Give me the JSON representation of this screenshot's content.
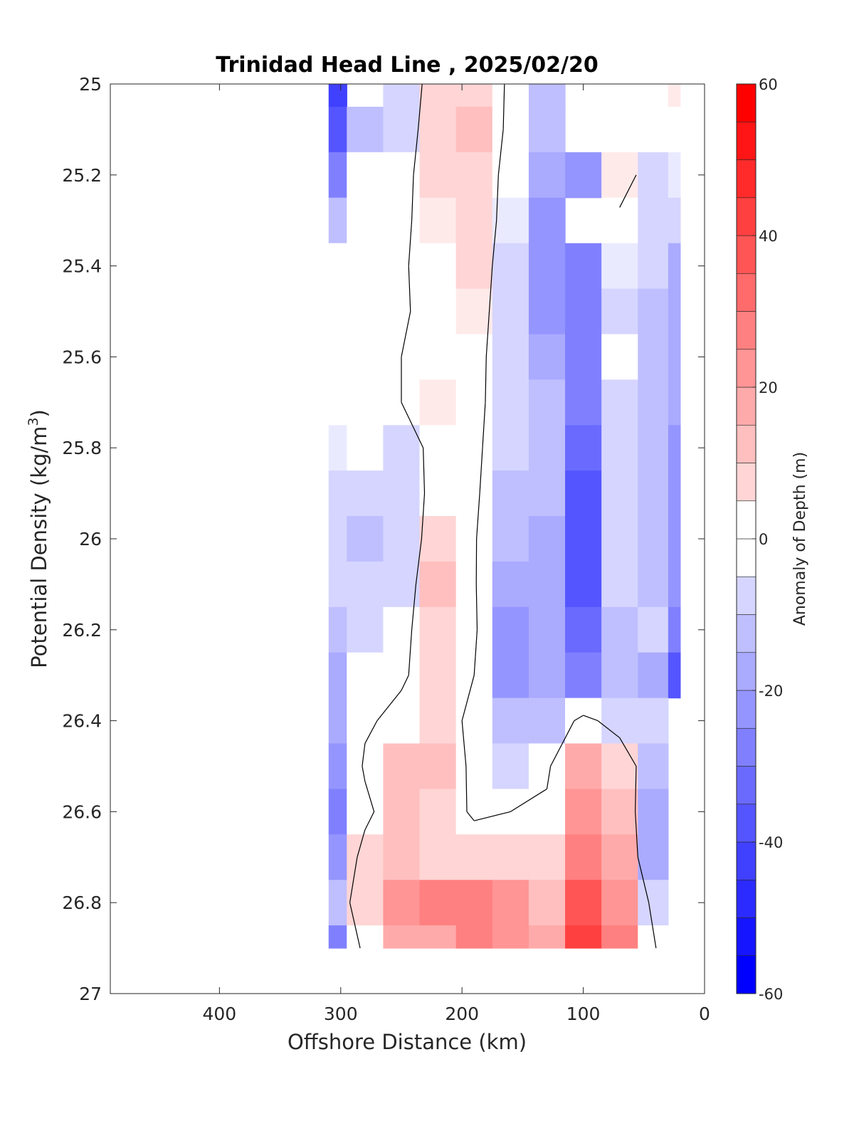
{
  "chart_data": {
    "type": "heatmap",
    "title": "Trinidad Head Line , 2025/02/20",
    "xlabel": "Offshore Distance (km)",
    "ylabel_main": "Potential Density (kg/m",
    "ylabel_sup": "3",
    "ylabel_end": ")",
    "colorbar_label": "Anomaly of Depth (m)",
    "xlim": [
      490,
      0
    ],
    "x_reversed": true,
    "ylim": [
      25,
      27
    ],
    "y_reversed": true,
    "xticks": [
      400,
      300,
      200,
      100,
      0
    ],
    "yticks": [
      25,
      25.2,
      25.4,
      25.6,
      25.8,
      26,
      26.2,
      26.4,
      26.6,
      26.8,
      27
    ],
    "ytick_labels": [
      "25",
      "25.2",
      "25.4",
      "25.6",
      "25.8",
      "26",
      "26.2",
      "26.4",
      "26.6",
      "26.8",
      "27"
    ],
    "colorbar_ticks": [
      60,
      40,
      20,
      0,
      -20,
      -40,
      -60
    ],
    "colorbar_range": [
      -60,
      60
    ],
    "colorbar_step": 5,
    "colors": {
      "negative": "#0000ff",
      "positive": "#ff0000",
      "neutral": "#ffffff",
      "contour": "#000000"
    },
    "x": [
      310,
      280,
      250,
      220,
      190,
      160,
      130,
      100,
      70,
      40,
      20
    ],
    "y": [
      25.0,
      25.1,
      25.2,
      25.3,
      25.4,
      25.5,
      25.6,
      25.7,
      25.8,
      25.9,
      26.0,
      26.1,
      26.2,
      26.3,
      26.4,
      26.5,
      26.6,
      26.7,
      26.8,
      26.9
    ],
    "z": [
      [
        -45,
        null,
        -8,
        6,
        10,
        -2,
        -12,
        null,
        null,
        null,
        5
      ],
      [
        -40,
        -12,
        -6,
        7,
        12,
        -3,
        -15,
        null,
        null,
        -2,
        0
      ],
      [
        -30,
        0,
        -3,
        6,
        8,
        -4,
        -18,
        -25,
        5,
        -6,
        -5
      ],
      [
        -12,
        -2,
        -2,
        5,
        8,
        -5,
        -22,
        null,
        -2,
        -8,
        -10
      ],
      [
        -3,
        -2,
        -1,
        4,
        6,
        -6,
        -22,
        -26,
        -5,
        -10,
        -16
      ],
      [
        0,
        -1,
        -1,
        3,
        5,
        -7,
        -22,
        -26,
        -6,
        -12,
        -18
      ],
      [
        0,
        -1,
        0,
        4,
        4,
        -8,
        -20,
        -28,
        -4,
        -12,
        -20
      ],
      [
        -2,
        -1,
        0,
        5,
        4,
        -9,
        -15,
        -30,
        -6,
        -14,
        -20
      ],
      [
        -5,
        -4,
        -6,
        4,
        3,
        -10,
        -14,
        -32,
        -8,
        -14,
        -22
      ],
      [
        -8,
        -10,
        -7,
        4,
        2,
        -11,
        -14,
        -36,
        -10,
        -12,
        -22
      ],
      [
        -10,
        -12,
        -10,
        8,
        1,
        -14,
        -18,
        -40,
        -10,
        -12,
        -24
      ],
      [
        -10,
        -10,
        -8,
        12,
        1,
        -16,
        -20,
        -38,
        -10,
        -12,
        -24
      ],
      [
        -14,
        -8,
        -4,
        10,
        2,
        -22,
        -20,
        -34,
        -14,
        -10,
        -28
      ],
      [
        -16,
        -4,
        -2,
        8,
        0,
        -24,
        -20,
        -30,
        -12,
        -18,
        -40
      ],
      [
        -20,
        -2,
        4,
        8,
        -4,
        -14,
        -12,
        4,
        -6,
        -10,
        null
      ],
      [
        -24,
        2,
        14,
        14,
        -4,
        -6,
        -2,
        18,
        10,
        -12,
        null
      ],
      [
        -26,
        -4,
        12,
        8,
        -2,
        0,
        2,
        22,
        12,
        -16,
        null
      ],
      [
        -22,
        6,
        12,
        10,
        8,
        10,
        6,
        30,
        20,
        -20,
        null
      ],
      [
        -14,
        10,
        24,
        26,
        26,
        22,
        14,
        38,
        24,
        -6,
        null
      ],
      [
        -26,
        4,
        18,
        18,
        30,
        24,
        16,
        44,
        28,
        0,
        null
      ]
    ]
  }
}
